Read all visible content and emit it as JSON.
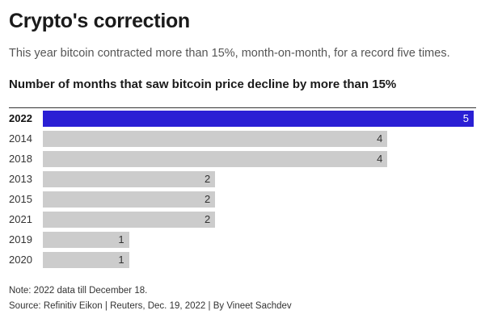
{
  "header": {
    "title": "Crypto's correction",
    "subtitle": "This year bitcoin contracted more than 15%, month-on-month, for a record five times."
  },
  "chart_data": {
    "type": "bar",
    "orientation": "horizontal",
    "title": "Number of months that saw bitcoin price decline by more than 15%",
    "categories": [
      "2022",
      "2014",
      "2018",
      "2013",
      "2015",
      "2021",
      "2019",
      "2020"
    ],
    "values": [
      5,
      4,
      4,
      2,
      2,
      2,
      1,
      1
    ],
    "highlight": "2022",
    "xlim": [
      0,
      5
    ],
    "grid": false,
    "colors": {
      "highlight": "#2a1fd4",
      "default": "#cccccc"
    }
  },
  "footer": {
    "note": "Note: 2022 data till December 18.",
    "source": "Source: Refinitiv Eikon | Reuters, Dec. 19, 2022 | By Vineet Sachdev"
  }
}
